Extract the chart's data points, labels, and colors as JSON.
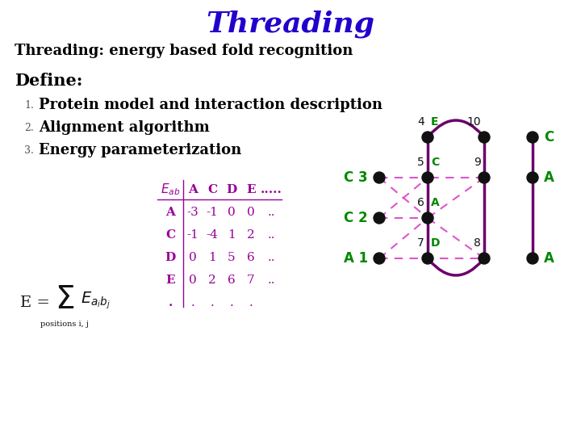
{
  "title": "Threading",
  "title_color": "#2200CC",
  "subtitle": "Threading: energy based fold recognition",
  "define_label": "Define:",
  "items": [
    "Protein model and interaction description",
    "Alignment algorithm",
    "Energy parameterization"
  ],
  "bg_color": "#ffffff",
  "text_color": "#000000",
  "purple_color": "#6B006B",
  "green_color": "#008800",
  "pink_color": "#DD55CC",
  "matrix_color": "#990099",
  "matrix_rows": [
    [
      "A",
      "-3",
      "-1",
      "0",
      "0",
      ".."
    ],
    [
      "C",
      "-1",
      "-4",
      "1",
      "2",
      ".."
    ],
    [
      "D",
      "0",
      "1",
      "5",
      "6",
      ".."
    ],
    [
      "E",
      "0",
      "2",
      "6",
      "7",
      ".."
    ],
    [
      ".",
      ".",
      ".",
      ".",
      ".",
      ""
    ]
  ]
}
